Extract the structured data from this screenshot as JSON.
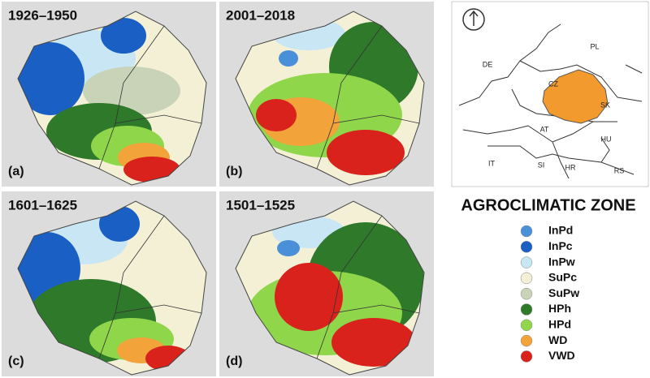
{
  "panels": [
    {
      "period": "1926–1950",
      "label": "(a)"
    },
    {
      "period": "2001–2018",
      "label": "(b)"
    },
    {
      "period": "1601–1625",
      "label": "(c)"
    },
    {
      "period": "1501–1525",
      "label": "(d)"
    }
  ],
  "inset_map": {
    "countries": [
      "DE",
      "PL",
      "CZ",
      "SK",
      "AT",
      "HU",
      "IT",
      "SI",
      "HR",
      "RS"
    ],
    "highlight_color": "#f29a2e"
  },
  "legend": {
    "title": "AGROCLIMATIC ZONE",
    "zones": [
      {
        "name": "InPd",
        "color": "#4a90d9"
      },
      {
        "name": "InPc",
        "color": "#1a5fc4"
      },
      {
        "name": "InPw",
        "color": "#c9e6f5"
      },
      {
        "name": "SuPc",
        "color": "#f3f0d6"
      },
      {
        "name": "SuPw",
        "color": "#c9d3b8"
      },
      {
        "name": "HPh",
        "color": "#2f7a2a"
      },
      {
        "name": "HPd",
        "color": "#8fd64a"
      },
      {
        "name": "WD",
        "color": "#f2a33a"
      },
      {
        "name": "VWD",
        "color": "#d9221c"
      }
    ]
  }
}
